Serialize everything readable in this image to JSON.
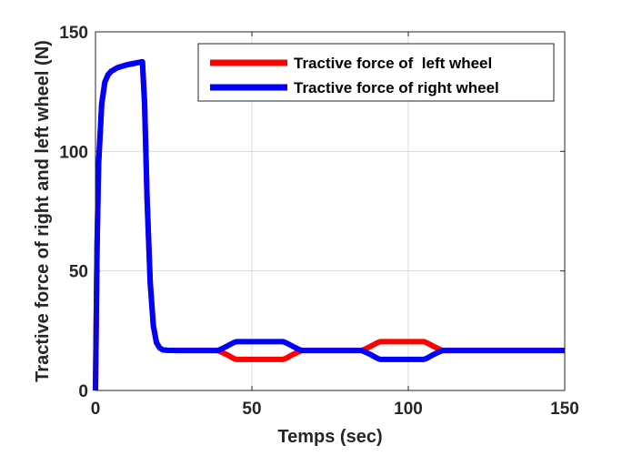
{
  "chart_data": {
    "type": "line",
    "title": "",
    "xlabel": "Temps (sec)",
    "ylabel": "Tractive force of right and left wheel (N)",
    "xlim": [
      0,
      150
    ],
    "ylim": [
      0,
      150
    ],
    "xticks": [
      "0",
      "50",
      "100",
      "150"
    ],
    "yticks": [
      "0",
      "50",
      "100",
      "150"
    ],
    "grid": true,
    "legend_position": "top-right",
    "series": [
      {
        "name": "Tractive force of  left wheel",
        "color": "#ff0000",
        "x": [
          0,
          0.5,
          1,
          2,
          3,
          4,
          5,
          7,
          10,
          13,
          15,
          15.7,
          16.5,
          17.5,
          18.5,
          19.5,
          20.5,
          21.5,
          23,
          26,
          30,
          35,
          39,
          40,
          42,
          44,
          45,
          50,
          55,
          60,
          61,
          63,
          65,
          66,
          70,
          75,
          80,
          85,
          86,
          88,
          90,
          91,
          95,
          100,
          105,
          106,
          108,
          110,
          111,
          115,
          120,
          130,
          140,
          150
        ],
        "y": [
          0,
          60,
          95,
          120,
          129,
          132,
          133.5,
          135,
          136.2,
          137,
          137.5,
          120,
          80,
          45,
          27,
          20,
          17.8,
          17,
          16.8,
          16.7,
          16.7,
          16.7,
          16.7,
          16.2,
          15,
          13.5,
          13,
          13,
          13,
          13,
          13.5,
          15,
          16.2,
          16.7,
          16.7,
          16.7,
          16.7,
          16.7,
          17.2,
          18.5,
          19.9,
          20.4,
          20.4,
          20.4,
          20.4,
          19.9,
          18.5,
          17.2,
          16.7,
          16.7,
          16.7,
          16.7,
          16.7,
          16.7
        ]
      },
      {
        "name": "Tractive force of right wheel",
        "color": "#0000ff",
        "x": [
          0,
          0.5,
          1,
          2,
          3,
          4,
          5,
          7,
          10,
          13,
          15,
          15.7,
          16.5,
          17.5,
          18.5,
          19.5,
          20.5,
          21.5,
          23,
          26,
          30,
          35,
          39,
          40,
          42,
          44,
          45,
          50,
          55,
          60,
          61,
          63,
          65,
          66,
          70,
          75,
          80,
          85,
          86,
          88,
          90,
          91,
          95,
          100,
          105,
          106,
          108,
          110,
          111,
          115,
          120,
          130,
          140,
          150
        ],
        "y": [
          0,
          60,
          95,
          120,
          129,
          132,
          133.5,
          135,
          136.2,
          137,
          137.5,
          120,
          80,
          45,
          27,
          20,
          17.8,
          17,
          16.8,
          16.7,
          16.7,
          16.7,
          16.7,
          17.2,
          18.5,
          19.9,
          20.4,
          20.4,
          20.4,
          20.4,
          19.9,
          18.5,
          17.2,
          16.7,
          16.7,
          16.7,
          16.7,
          16.7,
          16.2,
          15,
          13.5,
          13,
          13,
          13,
          13,
          13.5,
          15,
          16.2,
          16.7,
          16.7,
          16.7,
          16.7,
          16.7,
          16.7
        ]
      }
    ]
  }
}
